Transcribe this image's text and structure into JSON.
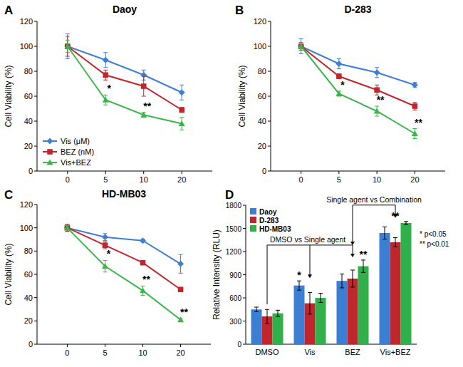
{
  "chart_data": [
    {
      "panel": "A",
      "type": "line",
      "title": "Daoy",
      "y_label": "Cell Viability (%)",
      "categories": [
        "0",
        "5",
        "10",
        "20"
      ],
      "ylim": [
        0,
        120
      ],
      "yticks": [
        0,
        20,
        40,
        60,
        80,
        100,
        120
      ],
      "legend": "lower left",
      "series": [
        {
          "name": "Vis (μM)",
          "color": "#3d7fd6",
          "marker": "diamond",
          "values": [
            100,
            89,
            77,
            63
          ],
          "errors": [
            10,
            6,
            4,
            6
          ]
        },
        {
          "name": "BEZ (nM)",
          "color": "#c0262c",
          "marker": "square",
          "values": [
            100,
            77,
            68,
            49
          ],
          "errors": [
            8,
            4,
            8,
            2
          ]
        },
        {
          "name": "Vis+BEZ",
          "color": "#3cb54a",
          "marker": "triangle",
          "values": [
            100,
            57,
            45,
            38
          ],
          "errors": [
            5,
            4,
            2,
            5
          ]
        }
      ],
      "annotations": [
        {
          "x": "5",
          "text": "*"
        },
        {
          "x": "10",
          "text": "**"
        }
      ]
    },
    {
      "panel": "B",
      "type": "line",
      "title": "D-283",
      "y_label": "Cell Viability (%)",
      "categories": [
        "0",
        "5",
        "10",
        "20"
      ],
      "ylim": [
        0,
        120
      ],
      "yticks": [
        0,
        20,
        40,
        60,
        80,
        100,
        120
      ],
      "series": [
        {
          "name": "Vis (μM)",
          "color": "#3d7fd6",
          "marker": "diamond",
          "values": [
            100,
            86,
            79,
            69
          ],
          "errors": [
            6,
            4,
            4,
            2
          ]
        },
        {
          "name": "BEZ (nM)",
          "color": "#c0262c",
          "marker": "square",
          "values": [
            100,
            76,
            65,
            52
          ],
          "errors": [
            3,
            2,
            4,
            3
          ]
        },
        {
          "name": "Vis+BEZ",
          "color": "#3cb54a",
          "marker": "triangle",
          "values": [
            100,
            62,
            48,
            30
          ],
          "errors": [
            2,
            2,
            4,
            4
          ]
        }
      ],
      "annotations": [
        {
          "x": "5",
          "text": "*"
        },
        {
          "x": "10",
          "text": "**"
        },
        {
          "x": "20",
          "text": "**"
        }
      ]
    },
    {
      "panel": "C",
      "type": "line",
      "title": "HD-MB03",
      "y_label": "Cell Viability (%)",
      "categories": [
        "0",
        "5",
        "10",
        "20"
      ],
      "ylim": [
        0,
        120
      ],
      "yticks": [
        0,
        20,
        40,
        60,
        80,
        100,
        120
      ],
      "series": [
        {
          "name": "Vis (μM)",
          "color": "#3d7fd6",
          "marker": "diamond",
          "values": [
            100,
            92,
            89,
            69
          ],
          "errors": [
            3,
            3,
            1,
            8
          ]
        },
        {
          "name": "BEZ (nM)",
          "color": "#c0262c",
          "marker": "square",
          "values": [
            100,
            85,
            70,
            47
          ],
          "errors": [
            3,
            3,
            1,
            1
          ]
        },
        {
          "name": "Vis+BEZ",
          "color": "#3cb54a",
          "marker": "triangle",
          "values": [
            100,
            67,
            46,
            21
          ],
          "errors": [
            2,
            5,
            4,
            1
          ]
        }
      ],
      "annotations": [
        {
          "x": "5",
          "text": "*"
        },
        {
          "x": "10",
          "text": "**"
        },
        {
          "x": "20",
          "text": "**"
        }
      ]
    },
    {
      "panel": "D",
      "type": "bar",
      "y_label": "Relative Intensity (RLU)",
      "categories": [
        "DMSO",
        "Vis",
        "BEZ",
        "Vis+BEZ"
      ],
      "ylim": [
        0,
        1800
      ],
      "yticks": [
        0,
        300,
        600,
        900,
        1200,
        1500,
        1800
      ],
      "legend": "upper left",
      "series": [
        {
          "name": "Daoy",
          "color": "#3b7fd4",
          "values": [
            450,
            760,
            820,
            1440
          ],
          "errors": [
            30,
            60,
            90,
            80
          ]
        },
        {
          "name": "D-283",
          "color": "#c0262c",
          "values": [
            360,
            530,
            850,
            1320
          ],
          "errors": [
            90,
            140,
            110,
            60
          ]
        },
        {
          "name": "HD-MB03",
          "color": "#2fb04a",
          "values": [
            400,
            600,
            1010,
            1570
          ],
          "errors": [
            40,
            60,
            80,
            20
          ]
        }
      ],
      "annotations": [
        {
          "x": "Vis",
          "series": "Daoy",
          "text": "*"
        },
        {
          "x": "BEZ",
          "series": "HD-MB03",
          "text": "**"
        },
        {
          "x": "Vis+BEZ",
          "text": "**"
        }
      ],
      "comparisons": [
        "DMSO vs Single agent",
        "Single agent vs Combination"
      ],
      "significance_key": [
        "* p<0.05",
        "** p<0.01"
      ]
    }
  ]
}
